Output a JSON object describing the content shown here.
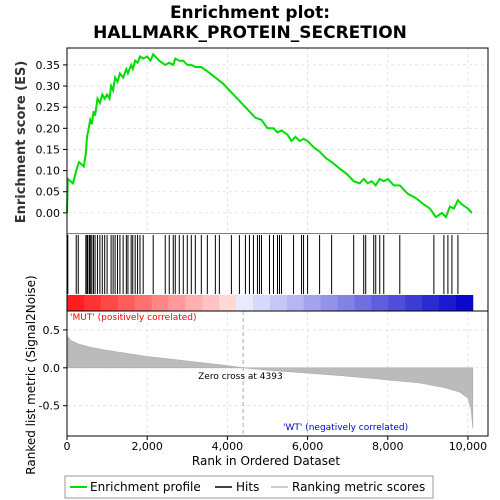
{
  "chart_data": {
    "type": "line",
    "title_line1": "Enrichment plot:",
    "title_line2": "HALLMARK_PROTEIN_SECRETION",
    "es_panel": {
      "ylabel": "Enrichment score (ES)",
      "ylim": [
        -0.05,
        0.39
      ],
      "yticks": [
        "0.00",
        "0.05",
        "0.10",
        "0.15",
        "0.20",
        "0.25",
        "0.30",
        "0.35"
      ],
      "ytick_values": [
        0,
        0.05,
        0.1,
        0.15,
        0.2,
        0.25,
        0.3,
        0.35
      ],
      "line_color": "#00dd00",
      "points": [
        [
          0,
          0.0
        ],
        [
          20,
          0.08
        ],
        [
          150,
          0.07
        ],
        [
          230,
          0.1
        ],
        [
          300,
          0.12
        ],
        [
          420,
          0.11
        ],
        [
          470,
          0.14
        ],
        [
          500,
          0.18
        ],
        [
          540,
          0.2
        ],
        [
          580,
          0.22
        ],
        [
          620,
          0.21
        ],
        [
          660,
          0.24
        ],
        [
          700,
          0.23
        ],
        [
          760,
          0.27
        ],
        [
          820,
          0.26
        ],
        [
          880,
          0.28
        ],
        [
          940,
          0.27
        ],
        [
          1000,
          0.28
        ],
        [
          1060,
          0.27
        ],
        [
          1100,
          0.3
        ],
        [
          1150,
          0.29
        ],
        [
          1200,
          0.32
        ],
        [
          1260,
          0.31
        ],
        [
          1320,
          0.33
        ],
        [
          1400,
          0.32
        ],
        [
          1480,
          0.34
        ],
        [
          1520,
          0.33
        ],
        [
          1600,
          0.35
        ],
        [
          1640,
          0.34
        ],
        [
          1700,
          0.36
        ],
        [
          1760,
          0.355
        ],
        [
          1820,
          0.37
        ],
        [
          1900,
          0.365
        ],
        [
          2000,
          0.37
        ],
        [
          2080,
          0.36
        ],
        [
          2150,
          0.375
        ],
        [
          2300,
          0.36
        ],
        [
          2450,
          0.35
        ],
        [
          2550,
          0.355
        ],
        [
          2650,
          0.35
        ],
        [
          2700,
          0.365
        ],
        [
          2800,
          0.36
        ],
        [
          2900,
          0.36
        ],
        [
          3000,
          0.35
        ],
        [
          3100,
          0.35
        ],
        [
          3200,
          0.345
        ],
        [
          3350,
          0.345
        ],
        [
          3500,
          0.335
        ],
        [
          3700,
          0.32
        ],
        [
          3900,
          0.305
        ],
        [
          4100,
          0.285
        ],
        [
          4300,
          0.265
        ],
        [
          4500,
          0.245
        ],
        [
          4700,
          0.225
        ],
        [
          4850,
          0.22
        ],
        [
          5000,
          0.2
        ],
        [
          5150,
          0.2
        ],
        [
          5250,
          0.19
        ],
        [
          5350,
          0.195
        ],
        [
          5500,
          0.185
        ],
        [
          5600,
          0.17
        ],
        [
          5700,
          0.18
        ],
        [
          5800,
          0.17
        ],
        [
          5900,
          0.175
        ],
        [
          6000,
          0.17
        ],
        [
          6150,
          0.155
        ],
        [
          6300,
          0.145
        ],
        [
          6450,
          0.13
        ],
        [
          6600,
          0.12
        ],
        [
          6800,
          0.105
        ],
        [
          7000,
          0.09
        ],
        [
          7150,
          0.075
        ],
        [
          7300,
          0.07
        ],
        [
          7400,
          0.08
        ],
        [
          7500,
          0.07
        ],
        [
          7600,
          0.075
        ],
        [
          7700,
          0.065
        ],
        [
          7800,
          0.08
        ],
        [
          7900,
          0.075
        ],
        [
          8000,
          0.08
        ],
        [
          8150,
          0.065
        ],
        [
          8300,
          0.065
        ],
        [
          8500,
          0.045
        ],
        [
          8700,
          0.035
        ],
        [
          8900,
          0.02
        ],
        [
          9050,
          0.01
        ],
        [
          9200,
          -0.01
        ],
        [
          9350,
          0.0
        ],
        [
          9450,
          -0.01
        ],
        [
          9550,
          0.015
        ],
        [
          9650,
          0.01
        ],
        [
          9750,
          0.03
        ],
        [
          9850,
          0.02
        ],
        [
          10000,
          0.01
        ],
        [
          10100,
          0.0
        ]
      ]
    },
    "hits_panel": {
      "hit_positions": [
        20,
        230,
        280,
        470,
        500,
        520,
        560,
        590,
        620,
        660,
        700,
        760,
        820,
        880,
        940,
        1000,
        1100,
        1150,
        1200,
        1260,
        1320,
        1400,
        1480,
        1520,
        1600,
        1640,
        1700,
        1760,
        1820,
        1900,
        2150,
        2450,
        2550,
        2650,
        2700,
        2800,
        2900,
        3000,
        3100,
        3200,
        3350,
        3500,
        3700,
        3800,
        4100,
        4300,
        4450,
        4550,
        4650,
        4750,
        4800,
        4850,
        5050,
        5150,
        5250,
        5300,
        5350,
        5650,
        5850,
        5900,
        6000,
        6300,
        6600,
        7150,
        7400,
        7450,
        7650,
        7700,
        7800,
        7900,
        8300,
        9150,
        9400,
        9500,
        9600,
        9750
      ]
    },
    "metric_panel": {
      "ylabel": "Ranked list metric (Signal2Noise)",
      "ylim": [
        -0.9,
        0.75
      ],
      "yticks": [
        "0.5",
        "0.0",
        "-0.5"
      ],
      "ytick_values": [
        0.5,
        0.0,
        -0.5
      ],
      "zero_cross_label": "Zero cross at 4393",
      "zero_cross": 4393,
      "pos_label": "'MUT' (positively correlated)",
      "neg_label": "'WT' (negatively correlated)",
      "curve": [
        [
          0,
          0.42
        ],
        [
          100,
          0.36
        ],
        [
          300,
          0.31
        ],
        [
          600,
          0.27
        ],
        [
          1000,
          0.23
        ],
        [
          1500,
          0.19
        ],
        [
          2000,
          0.15
        ],
        [
          2500,
          0.12
        ],
        [
          3000,
          0.09
        ],
        [
          3500,
          0.06
        ],
        [
          4000,
          0.03
        ],
        [
          4393,
          0.0
        ],
        [
          5000,
          -0.03
        ],
        [
          6000,
          -0.07
        ],
        [
          7000,
          -0.11
        ],
        [
          8000,
          -0.16
        ],
        [
          8800,
          -0.2
        ],
        [
          9400,
          -0.26
        ],
        [
          9800,
          -0.32
        ],
        [
          10000,
          -0.4
        ],
        [
          10080,
          -0.55
        ],
        [
          10120,
          -0.8
        ]
      ]
    },
    "xaxis": {
      "xlabel": "Rank in Ordered Dataset",
      "xlim": [
        0,
        10500
      ],
      "xticks": [
        "0",
        "2,000",
        "4,000",
        "6,000",
        "8,000",
        "10,000"
      ],
      "xtick_values": [
        0,
        2000,
        4000,
        6000,
        8000,
        10000
      ],
      "n_genes": 10120
    },
    "legend": {
      "items": [
        {
          "label": "Enrichment profile",
          "color": "#00dd00"
        },
        {
          "label": "Hits",
          "color": "#000000"
        },
        {
          "label": "Ranking metric scores",
          "color": "#bbbbbb"
        }
      ],
      "placement": "bottom"
    },
    "colors": {
      "pos_label_color": "#ff0000",
      "neg_label_color": "#0000cc",
      "metric_fill": "#bbbbbb",
      "grid": "#dddddd"
    }
  }
}
